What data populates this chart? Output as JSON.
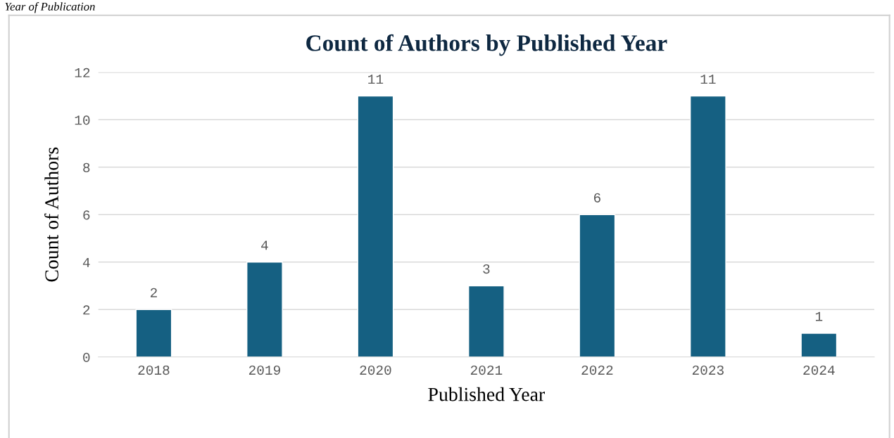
{
  "chart_data": {
    "type": "bar",
    "title": "Count of Authors by Published Year",
    "xlabel": "Published Year",
    "ylabel": "Count of Authors",
    "annotations": [
      "Year of Publication"
    ],
    "categories": [
      "2018",
      "2019",
      "2020",
      "2021",
      "2022",
      "2023",
      "2024"
    ],
    "values": [
      2,
      4,
      11,
      3,
      6,
      11,
      1
    ],
    "color": "#156082",
    "ylim": [
      0,
      12
    ],
    "yticks": [
      0,
      2,
      4,
      6,
      8,
      10,
      12
    ],
    "grid": "y",
    "data_labels": true,
    "legend": false
  }
}
